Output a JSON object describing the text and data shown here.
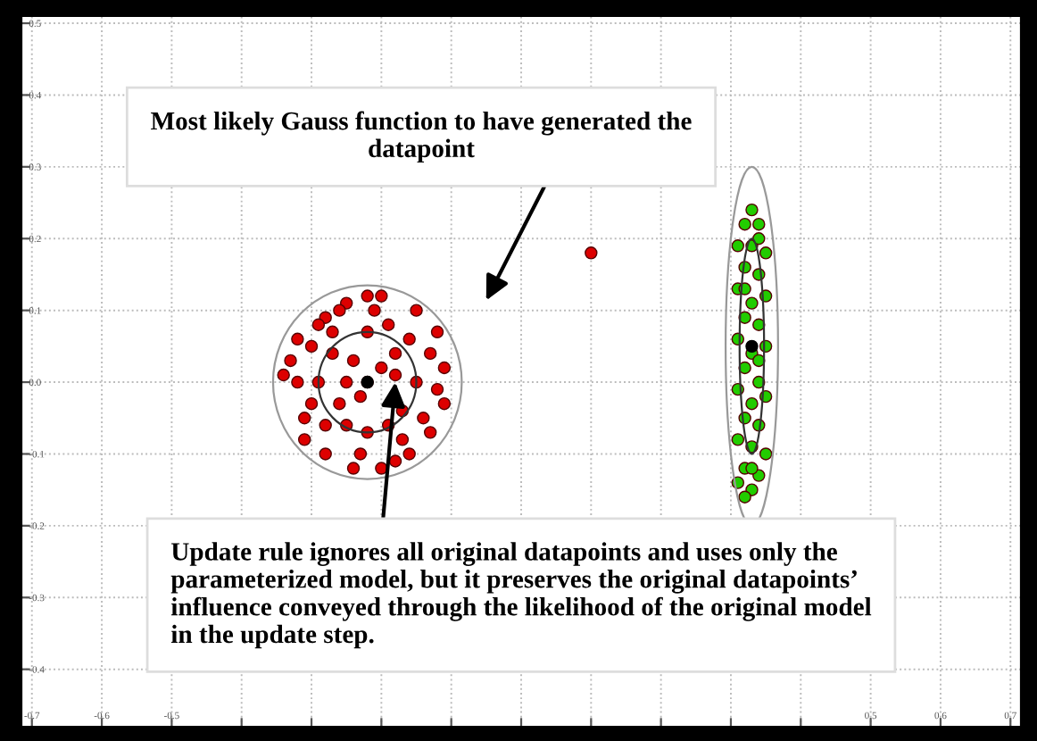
{
  "chart_data": {
    "type": "scatter",
    "xlim": [
      -0.715,
      0.715
    ],
    "ylim": [
      -0.48,
      0.51
    ],
    "xticks": [
      -0.7,
      -0.6,
      -0.5,
      {
        "value": -0.4,
        "label": null
      },
      {
        "value": -0.3,
        "label": null
      },
      {
        "value": -0.2,
        "label": null
      },
      {
        "value": -0.1,
        "label": null
      },
      {
        "value": 0.0,
        "label": null
      },
      {
        "value": 0.1,
        "label": null
      },
      {
        "value": 0.2,
        "label": null
      },
      {
        "value": 0.3,
        "label": null
      },
      {
        "value": 0.4,
        "label": null
      },
      0.5,
      0.6,
      0.7
    ],
    "yticks": [
      0.5,
      0.4,
      0.3,
      0.2,
      0.1,
      {
        "value": 0.0,
        "label": "0.0"
      },
      -0.1,
      -0.2,
      -0.3,
      -0.4
    ],
    "grid": true,
    "marker": "circle",
    "series": [
      {
        "color": "#dd0000",
        "x": [
          -0.22,
          -0.3,
          -0.32,
          -0.31,
          -0.28,
          -0.25,
          -0.2,
          -0.15,
          -0.12,
          -0.11,
          -0.11,
          -0.13,
          -0.16,
          -0.2,
          -0.24,
          -0.28,
          -0.31,
          -0.33,
          -0.27,
          -0.26,
          -0.18,
          -0.17,
          -0.22,
          -0.22,
          -0.29,
          -0.15,
          -0.24,
          -0.19,
          -0.25,
          -0.19,
          -0.27,
          -0.14,
          -0.3,
          -0.21,
          -0.23,
          -0.17,
          -0.13,
          -0.32,
          -0.26,
          -0.16,
          -0.2,
          -0.23,
          -0.28,
          -0.12,
          -0.34,
          -0.18,
          -0.22,
          -0.29,
          -0.25,
          -0.18,
          0.1
        ],
        "values": [
          0.0,
          0.05,
          0.0,
          -0.05,
          0.09,
          0.11,
          0.12,
          0.1,
          0.07,
          0.02,
          -0.03,
          -0.07,
          -0.1,
          -0.12,
          -0.12,
          -0.1,
          -0.08,
          0.03,
          0.04,
          -0.03,
          0.04,
          -0.04,
          0.07,
          -0.07,
          0.0,
          0.0,
          0.03,
          -0.06,
          -0.06,
          0.08,
          0.07,
          -0.05,
          -0.03,
          0.1,
          -0.1,
          -0.08,
          0.04,
          0.06,
          0.1,
          0.06,
          0.02,
          -0.02,
          -0.06,
          -0.01,
          0.01,
          -0.11,
          0.12,
          0.08,
          0.0,
          0.01,
          0.18
        ]
      },
      {
        "color": "#22cc00",
        "x": [
          0.33,
          0.32,
          0.34,
          0.31,
          0.33,
          0.35,
          0.32,
          0.34,
          0.31,
          0.35,
          0.33,
          0.32,
          0.34,
          0.31,
          0.35,
          0.33,
          0.32,
          0.34,
          0.31,
          0.33,
          0.35,
          0.32,
          0.34,
          0.31,
          0.33,
          0.35,
          0.32,
          0.34,
          0.31,
          0.33,
          0.32,
          0.34,
          0.32,
          0.34,
          0.33
        ],
        "values": [
          0.24,
          0.22,
          0.22,
          0.19,
          0.19,
          0.18,
          0.16,
          0.15,
          0.13,
          0.12,
          0.11,
          0.09,
          0.08,
          0.06,
          0.05,
          0.04,
          0.02,
          0.0,
          -0.01,
          -0.03,
          -0.02,
          -0.05,
          -0.06,
          -0.08,
          -0.09,
          -0.1,
          -0.12,
          -0.13,
          -0.14,
          -0.15,
          -0.16,
          0.2,
          0.13,
          0.03,
          -0.12
        ]
      },
      {
        "color": "#000000",
        "x": [
          -0.22,
          0.33
        ],
        "values": [
          0.0,
          0.05
        ]
      }
    ],
    "annotations": [
      "Most likely Gauss function to have generated the datapoint",
      {
        "text": "Update rule ignores all original datapoints and uses only the parameterized model, but it preserves the original datapoints’ influence conveyed through the likelihood of the original model in the update step.",
        "x": -0.18,
        "y": 0.0
      }
    ]
  }
}
